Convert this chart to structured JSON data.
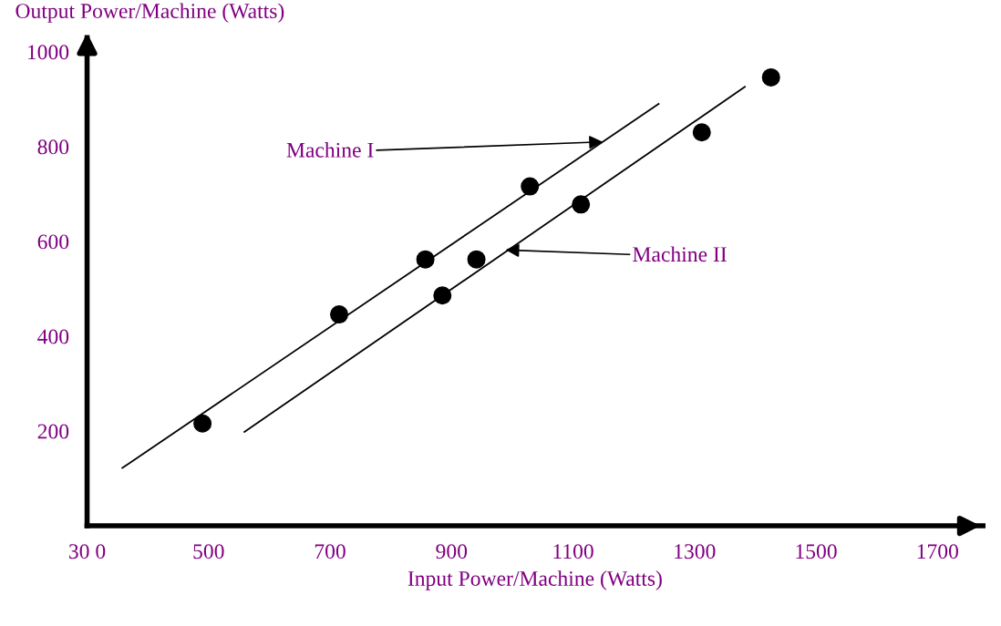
{
  "chart_data": {
    "type": "scatter",
    "xlabel": "Input Power/Machine (Watts)",
    "ylabel": "Output Power/Machine (Watts)",
    "xlim": [
      300,
      1775
    ],
    "ylim": [
      0,
      1030
    ],
    "xticks": [
      {
        "value": 300,
        "label": "30 0"
      },
      500,
      700,
      900,
      1100,
      1300,
      1500,
      1700
    ],
    "yticks": [
      200,
      400,
      600,
      800,
      1000
    ],
    "grid": false,
    "series": [
      {
        "marker": "circle",
        "color": "#000000",
        "x": [
          490,
          715,
          857,
          885,
          941,
          1029,
          1113,
          1312,
          1426
        ],
        "values": [
          216,
          446,
          562,
          486,
          562,
          716,
          678,
          830,
          946
        ]
      },
      {
        "type": "line",
        "marker": "none",
        "color": "#000000",
        "x": [
          358,
          1241
        ],
        "values": [
          122,
          890
        ]
      },
      {
        "type": "line",
        "marker": "none",
        "color": "#000000",
        "x": [
          559,
          1383
        ],
        "values": [
          198,
          926
        ]
      }
    ],
    "annotations": [
      {
        "text": "Machine I",
        "x": 1149,
        "y": 810
      },
      {
        "text": "Machine II",
        "x": 989,
        "y": 582
      }
    ]
  }
}
